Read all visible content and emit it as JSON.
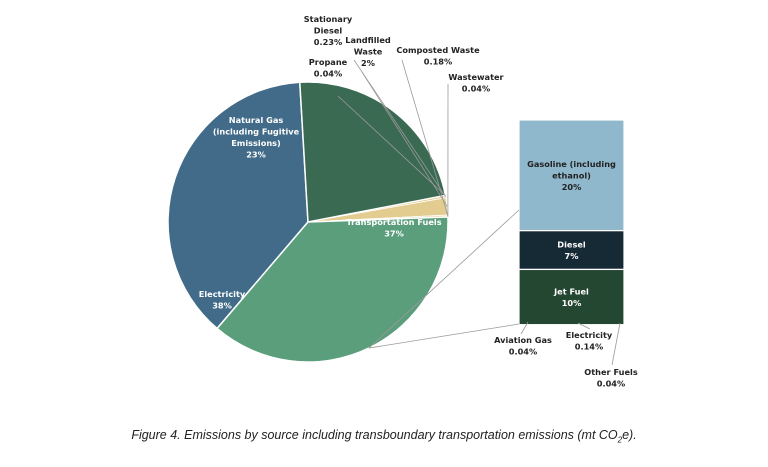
{
  "colors": {
    "electricity": "#416b88",
    "natural_gas": "#3b6a53",
    "transportation": "#5a9e7c",
    "small_slices": "#e2cc8f",
    "small_slice_edge": "#ffffff",
    "gasoline": "#8fb8cc",
    "diesel": "#162a35",
    "jet_fuel": "#244732",
    "bar_small": "#355e4a",
    "text_dark": "#222222",
    "text_light": "#ffffff",
    "leader": "#9a9a9a"
  },
  "chart_data": [
    {
      "type": "pie",
      "slices": [
        {
          "label_lines": [
            "Electricity",
            "38%"
          ],
          "value": 38,
          "color_key": "electricity"
        },
        {
          "label_lines": [
            "Natural Gas",
            "(including Fugitive",
            "Emissions)",
            "23%"
          ],
          "value": 23,
          "color_key": "natural_gas"
        },
        {
          "label_lines": [
            "Propane",
            "0.04%"
          ],
          "value": 0.04,
          "color_key": "small_slices"
        },
        {
          "label_lines": [
            "Stationary",
            "Diesel",
            "0.23%"
          ],
          "value": 0.23,
          "color_key": "small_slices"
        },
        {
          "label_lines": [
            "Landfilled",
            "Waste",
            "2%"
          ],
          "value": 2,
          "color_key": "small_slices"
        },
        {
          "label_lines": [
            "Composted Waste",
            "0.18%"
          ],
          "value": 0.18,
          "color_key": "small_slices"
        },
        {
          "label_lines": [
            "Wastewater",
            "0.04%"
          ],
          "value": 0.04,
          "color_key": "small_slices"
        },
        {
          "label_lines": [
            "Transportation Fuels",
            "37%"
          ],
          "value": 37,
          "color_key": "transportation"
        }
      ]
    },
    {
      "type": "bar",
      "stacked": true,
      "series": [
        {
          "label_lines": [
            "Gasoline (including",
            "ethanol)",
            "20%"
          ],
          "value": 20,
          "color_key": "gasoline"
        },
        {
          "label_lines": [
            "Diesel",
            "7%"
          ],
          "value": 7,
          "color_key": "diesel"
        },
        {
          "label_lines": [
            "Jet Fuel",
            "10%"
          ],
          "value": 10,
          "color_key": "jet_fuel"
        },
        {
          "label_lines": [
            "Aviation Gas",
            "0.04%"
          ],
          "value": 0.04,
          "color_key": "bar_small"
        },
        {
          "label_lines": [
            "Electricity",
            "0.14%"
          ],
          "value": 0.14,
          "color_key": "bar_small"
        },
        {
          "label_lines": [
            "Other Fuels",
            "0.04%"
          ],
          "value": 0.04,
          "color_key": "bar_small"
        }
      ]
    }
  ],
  "caption": {
    "prefix": "Figure 4. Emissions by source including transboundary transportation emissions (mt CO",
    "subscript": "2",
    "suffix": "e)."
  }
}
